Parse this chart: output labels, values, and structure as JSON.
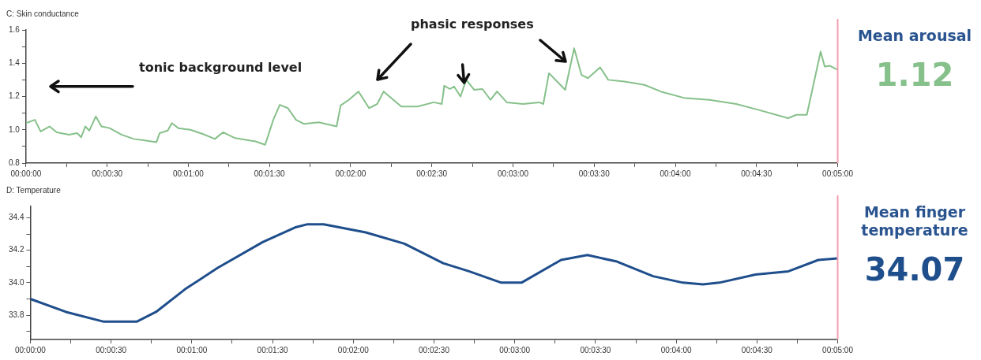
{
  "chart_data": [
    {
      "type": "line",
      "title": "C: Skin conductance",
      "x": [
        0,
        3.3,
        5.4,
        8.7,
        11.4,
        15.9,
        18.9,
        20.4,
        21.9,
        23.4,
        25.8,
        27.9,
        30.9,
        35.4,
        39.9,
        44.4,
        48.2,
        49.4,
        52.4,
        53.9,
        56.3,
        60.8,
        65.3,
        69.8,
        72.8,
        77.3,
        84.8,
        88.4,
        91.4,
        93.8,
        96.8,
        99.8,
        102.8,
        108.2,
        114.8,
        116.3,
        119.3,
        122.9,
        126.8,
        129.8,
        132.2,
        138.7,
        144.7,
        150.7,
        153.7,
        154.6,
        156.7,
        158.2,
        160.6,
        162.7,
        165.7,
        168.7,
        171.7,
        174.1,
        177.7,
        183.7,
        189.7,
        191.2,
        193.3,
        196.3,
        199.3,
        202.6,
        205.3,
        207.7,
        212.2,
        215.2,
        221.2,
        228.6,
        234.6,
        243.6,
        252.6,
        262.5,
        270.6,
        281.7,
        284.7,
        288.6,
        293.7,
        295.2,
        297,
        300
      ],
      "series": [
        {
          "color": "#86c08a",
          "values": [
            1.04,
            1.06,
            0.99,
            1.02,
            0.985,
            0.97,
            0.98,
            0.955,
            1.02,
            0.995,
            1.08,
            1.02,
            1.01,
            0.97,
            0.945,
            0.935,
            0.925,
            0.98,
            0.995,
            1.04,
            1.01,
            1.0,
            0.975,
            0.945,
            0.985,
            0.95,
            0.93,
            0.91,
            1.06,
            1.15,
            1.13,
            1.06,
            1.035,
            1.045,
            1.02,
            1.146,
            1.18,
            1.23,
            1.13,
            1.155,
            1.23,
            1.14,
            1.14,
            1.165,
            1.155,
            1.265,
            1.245,
            1.26,
            1.2,
            1.3,
            1.24,
            1.245,
            1.18,
            1.23,
            1.165,
            1.155,
            1.165,
            1.155,
            1.34,
            1.29,
            1.24,
            1.49,
            1.33,
            1.31,
            1.375,
            1.3,
            1.29,
            1.27,
            1.23,
            1.19,
            1.18,
            1.155,
            1.12,
            1.07,
            1.09,
            1.09,
            1.47,
            1.38,
            1.385,
            1.36
          ]
        }
      ],
      "xlim": [
        0,
        300
      ],
      "xticks": [
        {
          "value": 0,
          "label": "00:00:00"
        },
        {
          "value": 15,
          "label": null
        },
        {
          "value": 30,
          "label": "00:00:30"
        },
        {
          "value": 45,
          "label": null
        },
        {
          "value": 60,
          "label": "00:01:00"
        },
        {
          "value": 75,
          "label": null
        },
        {
          "value": 90,
          "label": "00:01:30"
        },
        {
          "value": 105,
          "label": null
        },
        {
          "value": 120,
          "label": "00:02:00"
        },
        {
          "value": 135,
          "label": null
        },
        {
          "value": 150,
          "label": "00:02:30"
        },
        {
          "value": 165,
          "label": null
        },
        {
          "value": 180,
          "label": "00:03:00"
        },
        {
          "value": 195,
          "label": null
        },
        {
          "value": 210,
          "label": "00:03:30"
        },
        {
          "value": 225,
          "label": null
        },
        {
          "value": 240,
          "label": "00:04:00"
        },
        {
          "value": 255,
          "label": null
        },
        {
          "value": 270,
          "label": "00:04:30"
        },
        {
          "value": 285,
          "label": null
        },
        {
          "value": 300,
          "label": "00:05:00"
        }
      ],
      "ylim": [
        0.8,
        1.6
      ],
      "yticks": [
        0.8,
        {
          "value": 0.9,
          "label": null
        },
        {
          "value": 1,
          "label": "1.0"
        },
        {
          "value": 1.1,
          "label": null
        },
        1.2,
        {
          "value": 1.3,
          "label": null
        },
        1.4,
        {
          "value": 1.5,
          "label": null
        },
        1.6
      ],
      "grid": false,
      "marker": "none",
      "ref_lines": [
        {
          "axis": "x",
          "value": 300,
          "color": "#f4a0b0"
        }
      ],
      "annotations": [
        "tonic background level",
        "phasic responses",
        "Mean arousal",
        "1.12"
      ]
    },
    {
      "type": "line",
      "title": "D: Temperature",
      "x": [
        0,
        13.2,
        27.3,
        39.5,
        46.7,
        57.5,
        69.5,
        86.3,
        98.3,
        103,
        109,
        124.6,
        139,
        153.4,
        163,
        175,
        182.5,
        197.2,
        207,
        218,
        231.4,
        242.5,
        250,
        256,
        269.5,
        281.7,
        292.8,
        300
      ],
      "series": [
        {
          "color": "#1f4e8c",
          "values": [
            33.9,
            33.82,
            33.76,
            33.76,
            33.82,
            33.96,
            34.09,
            34.25,
            34.34,
            34.36,
            34.36,
            34.31,
            34.24,
            34.12,
            34.07,
            34.0,
            34.0,
            34.14,
            34.17,
            34.13,
            34.04,
            34.0,
            33.99,
            34.0,
            34.05,
            34.07,
            34.14,
            34.15
          ]
        }
      ],
      "xlim": [
        0,
        300
      ],
      "xticks": [
        {
          "value": 0,
          "label": "00:00:00"
        },
        {
          "value": 15,
          "label": null
        },
        {
          "value": 30,
          "label": "00:00:30"
        },
        {
          "value": 45,
          "label": null
        },
        {
          "value": 60,
          "label": "00:01:00"
        },
        {
          "value": 75,
          "label": null
        },
        {
          "value": 90,
          "label": "00:01:30"
        },
        {
          "value": 105,
          "label": null
        },
        {
          "value": 120,
          "label": "00:02:00"
        },
        {
          "value": 135,
          "label": null
        },
        {
          "value": 150,
          "label": "00:02:30"
        },
        {
          "value": 165,
          "label": null
        },
        {
          "value": 180,
          "label": "00:03:00"
        },
        {
          "value": 195,
          "label": null
        },
        {
          "value": 210,
          "label": "00:03:30"
        },
        {
          "value": 225,
          "label": null
        },
        {
          "value": 240,
          "label": "00:04:00"
        },
        {
          "value": 255,
          "label": null
        },
        {
          "value": 270,
          "label": "00:04:30"
        },
        {
          "value": 285,
          "label": null
        },
        {
          "value": 300,
          "label": "00:05:00"
        }
      ],
      "ylim": [
        33.65,
        34.47
      ],
      "yticks": [
        {
          "value": 33.7,
          "label": null
        },
        33.8,
        {
          "value": 33.9,
          "label": null
        },
        {
          "value": 34,
          "label": "34.0"
        },
        {
          "value": 34.1,
          "label": null
        },
        34.2,
        {
          "value": 34.3,
          "label": null
        },
        34.4
      ],
      "grid": false,
      "marker": "none",
      "ref_lines": [
        {
          "axis": "x",
          "value": 300,
          "color": "#f4a0b0"
        }
      ],
      "annotations": [
        "Mean finger temperature",
        "34.07"
      ]
    }
  ]
}
